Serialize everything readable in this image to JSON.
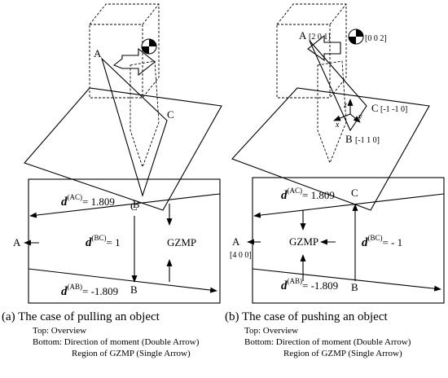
{
  "left": {
    "top": {
      "a": "A",
      "b": "B",
      "c": "C"
    },
    "bottom": {
      "ac": {
        "symbol": "d",
        "sup": "(AC)",
        "value": "= 1.809"
      },
      "c": "C",
      "bc": {
        "symbol": "d",
        "sup": "(BC)",
        "value": "= 1"
      },
      "gzmp": "GZMP",
      "a": "A",
      "ab": {
        "symbol": "d",
        "sup": "(AB)",
        "value": "= -1.809"
      },
      "b": "B"
    },
    "caption": "(a) The case of pulling an object",
    "notes": [
      "Top: Overview",
      "Bottom: Direction of moment (Double Arrow)",
      "Region of GZMP (Single Arrow)"
    ]
  },
  "right": {
    "top": {
      "a": "A",
      "a_vec": "[2 0 1]",
      "force_vec": "[0 0 2]",
      "c": "C",
      "c_vec": "[-1 -1 0]",
      "b": "B",
      "b_vec": "[-1 1 0]",
      "x": "x",
      "y": "y",
      "z": "z"
    },
    "bottom": {
      "ac": {
        "symbol": "d",
        "sup": "(AC)",
        "value": "= 1.809"
      },
      "c": "C",
      "a": "A",
      "a_vec": "[4 0 0]",
      "gzmp": "GZMP",
      "bc": {
        "symbol": "d",
        "sup": "(BC)",
        "value": "= - 1"
      },
      "ab": {
        "symbol": "d",
        "sup": "(AB)",
        "value": "= -1.809"
      },
      "b": "B"
    },
    "caption": "(b) The case of pushing an object",
    "notes": [
      "Top: Overview",
      "Bottom: Direction of moment (Double Arrow)",
      "Region of GZMP (Single Arrow)"
    ]
  }
}
